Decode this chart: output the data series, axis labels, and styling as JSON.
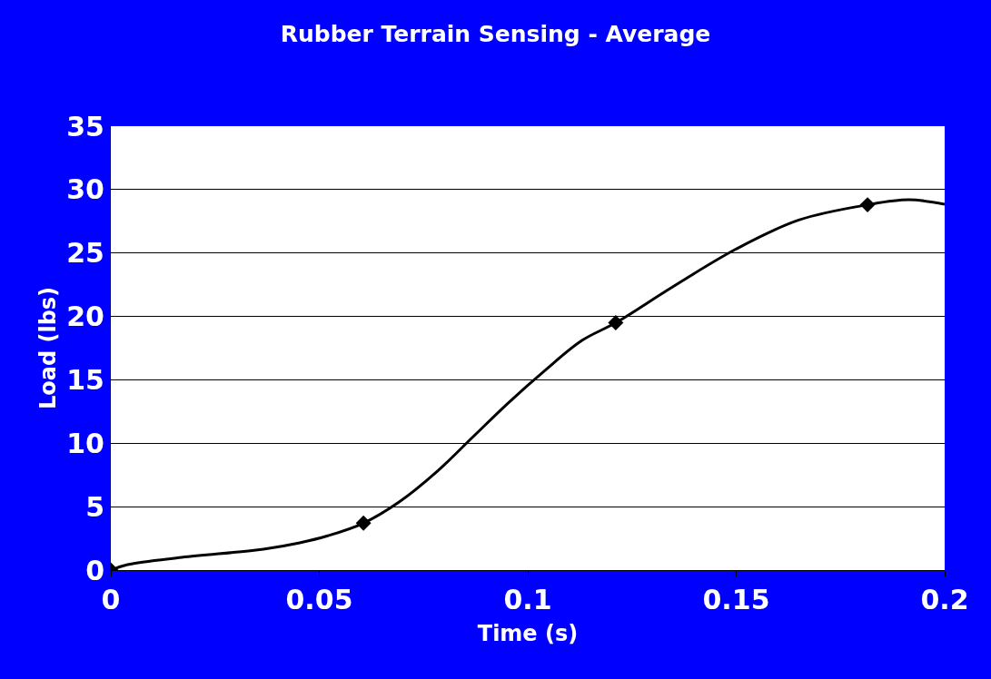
{
  "chart_data": {
    "type": "line",
    "title": "Rubber Terrain Sensing - Average",
    "xlabel": "Time (s)",
    "ylabel": "Load (lbs)",
    "series": [
      {
        "color": "#000000",
        "marker": "none",
        "x": [
          0,
          0.004,
          0.017,
          0.0366,
          0.0453,
          0.052,
          0.0606,
          0.0693,
          0.078,
          0.0867,
          0.0954,
          0.104,
          0.113,
          0.1211,
          0.1346,
          0.1499,
          0.165,
          0.1815,
          0.1913,
          0.2
        ],
        "values": [
          0,
          0.43,
          1.0,
          1.65,
          2.15,
          2.7,
          3.7,
          5.4,
          7.7,
          10.45,
          13.2,
          15.7,
          18.1,
          19.5,
          22.3,
          25.3,
          27.6,
          28.8,
          29.2,
          28.85
        ]
      },
      {
        "type": "scatter",
        "color": "#000000",
        "marker": "diamond",
        "x": [
          0,
          0.0606,
          0.1211,
          0.1815
        ],
        "values": [
          0,
          3.7,
          19.5,
          28.8
        ]
      }
    ],
    "xlim": [
      0,
      0.2
    ],
    "xticks": [
      0,
      0.05,
      0.1,
      0.15,
      0.2
    ],
    "ylim": [
      0,
      35
    ],
    "yticks": [
      0,
      5,
      10,
      15,
      20,
      25,
      30,
      35
    ],
    "grid": "y"
  }
}
